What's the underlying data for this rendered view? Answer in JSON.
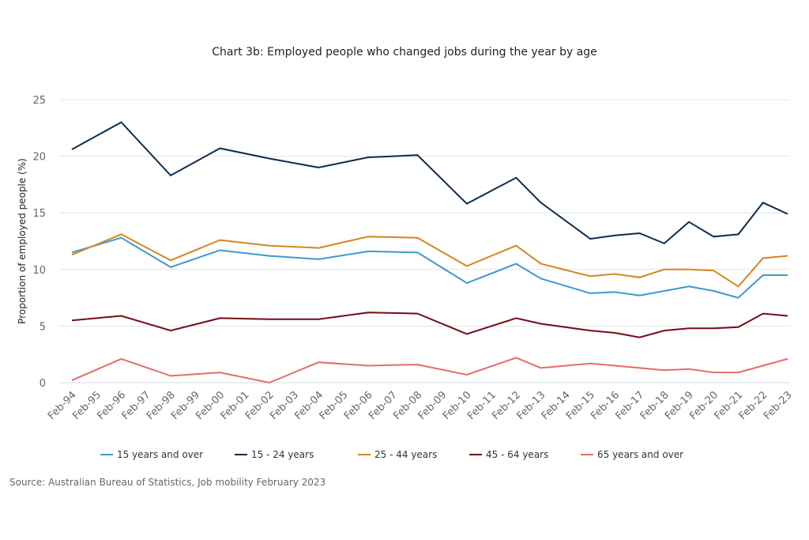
{
  "chart_data": {
    "type": "line",
    "title": "Chart 3b: Employed people who changed jobs during the year by age",
    "xlabel": "",
    "ylabel": "Proportion of employed people (%)",
    "ylim": [
      0,
      25
    ],
    "yticks": [
      0,
      5,
      10,
      15,
      20,
      25
    ],
    "grid": true,
    "legend_position": "bottom",
    "x_tick_labels": [
      "Feb-94",
      "Feb-95",
      "Feb-96",
      "Feb-97",
      "Feb-98",
      "Feb-99",
      "Feb-00",
      "Feb-01",
      "Feb-02",
      "Feb-03",
      "Feb-04",
      "Feb-05",
      "Feb-06",
      "Feb-07",
      "Feb-08",
      "Feb-09",
      "Feb-10",
      "Feb-11",
      "Feb-12",
      "Feb-13",
      "Feb-14",
      "Feb-15",
      "Feb-16",
      "Feb-17",
      "Feb-18",
      "Feb-19",
      "Feb-20",
      "Feb-21",
      "Feb-22",
      "Feb-23"
    ],
    "x": [
      1994,
      1996,
      1998,
      2000,
      2002,
      2004,
      2006,
      2008,
      2010,
      2012,
      2013,
      2015,
      2016,
      2017,
      2018,
      2019,
      2020,
      2021,
      2022,
      2023
    ],
    "series": [
      {
        "name": "15 years and over",
        "color": "#3b9ad0",
        "values": [
          11.5,
          12.8,
          10.2,
          11.7,
          11.2,
          10.9,
          11.6,
          11.5,
          8.8,
          10.5,
          9.2,
          7.9,
          8.0,
          7.7,
          8.1,
          8.5,
          8.1,
          7.5,
          9.5,
          9.5
        ]
      },
      {
        "name": "15 - 24 years",
        "color": "#0c2c4e",
        "values": [
          20.6,
          23.0,
          18.3,
          20.7,
          19.8,
          19.0,
          19.9,
          20.1,
          15.8,
          18.1,
          15.9,
          12.7,
          13.0,
          13.2,
          12.3,
          14.2,
          12.9,
          13.1,
          15.9,
          14.9
        ]
      },
      {
        "name": "25 - 44 years",
        "color": "#d4861e",
        "values": [
          11.3,
          13.1,
          10.8,
          12.6,
          12.1,
          11.9,
          12.9,
          12.8,
          10.3,
          12.1,
          10.5,
          9.4,
          9.6,
          9.3,
          10.0,
          10.0,
          9.9,
          8.5,
          11.0,
          11.2
        ]
      },
      {
        "name": "45 - 64 years",
        "color": "#760a16",
        "values": [
          5.5,
          5.9,
          4.6,
          5.7,
          5.6,
          5.6,
          6.2,
          6.1,
          4.3,
          5.7,
          5.2,
          4.6,
          4.4,
          4.0,
          4.6,
          4.8,
          4.8,
          4.9,
          6.1,
          5.9
        ]
      },
      {
        "name": "65 years and over",
        "color": "#e56b6b",
        "values": [
          0.2,
          2.1,
          0.6,
          0.9,
          0.0,
          1.8,
          1.5,
          1.6,
          0.7,
          2.2,
          1.3,
          1.7,
          1.5,
          1.3,
          1.1,
          1.2,
          0.9,
          0.9,
          1.5,
          2.1
        ]
      }
    ],
    "source": "Source: Australian Bureau of Statistics, Job mobility February 2023"
  }
}
